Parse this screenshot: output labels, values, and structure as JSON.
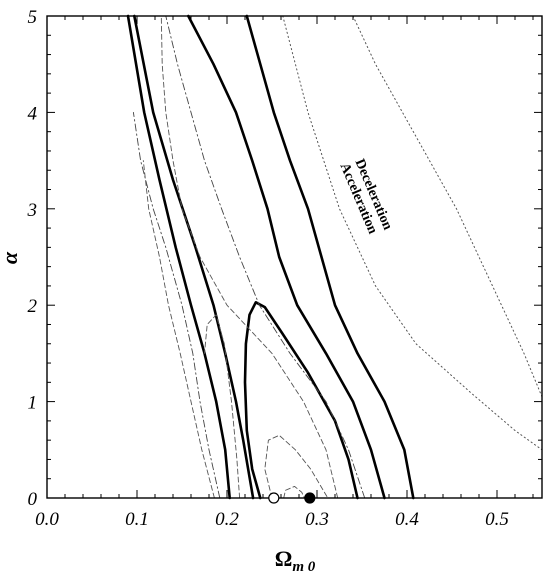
{
  "chart_data": {
    "type": "line",
    "xlabel_main": "Ω",
    "xlabel_sub": "m 0",
    "ylabel": "α",
    "xlim": [
      0.0,
      0.55
    ],
    "ylim": [
      0,
      5
    ],
    "x_ticks": [
      "0.0",
      "0.1",
      "0.2",
      "0.3",
      "0.4",
      "0.5"
    ],
    "y_ticks": [
      "0",
      "1",
      "2",
      "3",
      "4",
      "5"
    ],
    "grid": false,
    "annotations": [
      {
        "text": "Deceleration",
        "x": 0.37,
        "y": 3.3
      },
      {
        "text": "Acceleration",
        "x": 0.355,
        "y": 3.2
      }
    ],
    "series": [
      {
        "style": "solid",
        "points": [
          [
            0.229,
            0
          ],
          [
            0.218,
            0.6
          ],
          [
            0.21,
            1.0
          ],
          [
            0.198,
            1.5
          ],
          [
            0.185,
            2.0
          ],
          [
            0.165,
            2.6
          ],
          [
            0.14,
            3.3
          ],
          [
            0.118,
            4.0
          ],
          [
            0.097,
            5.0
          ]
        ]
      },
      {
        "style": "solid",
        "points": [
          [
            0.203,
            0
          ],
          [
            0.198,
            0.5
          ],
          [
            0.188,
            1.0
          ],
          [
            0.175,
            1.5
          ],
          [
            0.16,
            2.0
          ],
          [
            0.143,
            2.6
          ],
          [
            0.125,
            3.3
          ],
          [
            0.108,
            4.0
          ],
          [
            0.09,
            5.0
          ]
        ]
      },
      {
        "style": "solid",
        "points": [
          [
            0.375,
            0
          ],
          [
            0.36,
            0.5
          ],
          [
            0.34,
            1.0
          ],
          [
            0.31,
            1.5
          ],
          [
            0.278,
            2.0
          ],
          [
            0.258,
            2.5
          ],
          [
            0.245,
            3.0
          ],
          [
            0.228,
            3.5
          ],
          [
            0.21,
            4.0
          ],
          [
            0.185,
            4.5
          ],
          [
            0.157,
            5.0
          ]
        ]
      },
      {
        "style": "solid",
        "points": [
          [
            0.407,
            0
          ],
          [
            0.397,
            0.5
          ],
          [
            0.375,
            1.0
          ],
          [
            0.345,
            1.5
          ],
          [
            0.32,
            2.0
          ],
          [
            0.305,
            2.5
          ],
          [
            0.29,
            3.0
          ],
          [
            0.27,
            3.5
          ],
          [
            0.252,
            4.0
          ],
          [
            0.237,
            4.5
          ],
          [
            0.222,
            5.0
          ]
        ]
      },
      {
        "style": "solid",
        "points": [
          [
            0.237,
            0
          ],
          [
            0.228,
            0.3
          ],
          [
            0.222,
            0.7
          ],
          [
            0.22,
            1.2
          ],
          [
            0.221,
            1.6
          ],
          [
            0.225,
            1.9
          ],
          [
            0.232,
            2.03
          ],
          [
            0.242,
            1.98
          ],
          [
            0.262,
            1.7
          ],
          [
            0.29,
            1.3
          ],
          [
            0.32,
            0.8
          ],
          [
            0.335,
            0.4
          ],
          [
            0.345,
            0
          ]
        ]
      },
      {
        "style": "dashdot",
        "points": [
          [
            0.192,
            0
          ],
          [
            0.18,
            0.5
          ],
          [
            0.17,
            1.0
          ],
          [
            0.162,
            1.5
          ],
          [
            0.15,
            2.0
          ],
          [
            0.132,
            2.6
          ],
          [
            0.118,
            3.0
          ],
          [
            0.104,
            3.5
          ],
          [
            0.096,
            4.0
          ]
        ]
      },
      {
        "style": "dashdot",
        "points": [
          [
            0.353,
            0
          ],
          [
            0.335,
            0.5
          ],
          [
            0.31,
            1.0
          ],
          [
            0.27,
            1.5
          ],
          [
            0.236,
            2.0
          ],
          [
            0.214,
            2.5
          ],
          [
            0.194,
            3.0
          ],
          [
            0.175,
            3.5
          ],
          [
            0.16,
            4.0
          ],
          [
            0.145,
            4.5
          ],
          [
            0.132,
            5.0
          ]
        ]
      },
      {
        "style": "dashed",
        "points": [
          [
            0.186,
            0
          ],
          [
            0.172,
            0.5
          ],
          [
            0.16,
            1.0
          ],
          [
            0.148,
            1.5
          ],
          [
            0.135,
            2.0
          ],
          [
            0.125,
            2.5
          ],
          [
            0.113,
            3.0
          ],
          [
            0.107,
            3.5
          ]
        ]
      },
      {
        "style": "dashed",
        "points": [
          [
            0.323,
            0
          ],
          [
            0.31,
            0.5
          ],
          [
            0.285,
            1.0
          ],
          [
            0.25,
            1.5
          ],
          [
            0.2,
            2.0
          ],
          [
            0.17,
            2.5
          ],
          [
            0.15,
            3.0
          ],
          [
            0.14,
            3.5
          ],
          [
            0.132,
            4.0
          ],
          [
            0.128,
            4.5
          ],
          [
            0.127,
            5.0
          ]
        ]
      },
      {
        "style": "dashed",
        "points": [
          [
            0.214,
            0
          ],
          [
            0.211,
            0.4
          ],
          [
            0.205,
            1.0
          ],
          [
            0.197,
            1.6
          ],
          [
            0.188,
            1.9
          ],
          [
            0.178,
            1.8
          ],
          [
            0.175,
            1.5
          ]
        ]
      },
      {
        "style": "dashed",
        "points": [
          [
            0.25,
            0
          ],
          [
            0.242,
            0.3
          ],
          [
            0.246,
            0.6
          ],
          [
            0.258,
            0.65
          ],
          [
            0.276,
            0.5
          ],
          [
            0.293,
            0.3
          ],
          [
            0.312,
            0
          ]
        ]
      },
      {
        "style": "dashed",
        "points": [
          [
            0.263,
            0
          ],
          [
            0.265,
            0.08
          ],
          [
            0.275,
            0.12
          ],
          [
            0.283,
            0.06
          ],
          [
            0.286,
            0
          ]
        ]
      },
      {
        "style": "dotted",
        "points": [
          [
            0.262,
            5.0
          ],
          [
            0.29,
            4.0
          ],
          [
            0.325,
            3.0
          ],
          [
            0.365,
            2.2
          ],
          [
            0.41,
            1.6
          ],
          [
            0.47,
            1.1
          ],
          [
            0.52,
            0.7
          ],
          [
            0.55,
            0.5
          ]
        ]
      },
      {
        "style": "dotted",
        "points": [
          [
            0.34,
            5.0
          ],
          [
            0.365,
            4.5
          ],
          [
            0.395,
            4.0
          ],
          [
            0.425,
            3.5
          ],
          [
            0.455,
            3.0
          ],
          [
            0.48,
            2.5
          ],
          [
            0.505,
            2.0
          ],
          [
            0.53,
            1.5
          ],
          [
            0.55,
            1.05
          ]
        ]
      }
    ],
    "markers": [
      {
        "x": 0.252,
        "y": 0,
        "fill": "open"
      },
      {
        "x": 0.292,
        "y": 0,
        "fill": "filled"
      }
    ]
  }
}
